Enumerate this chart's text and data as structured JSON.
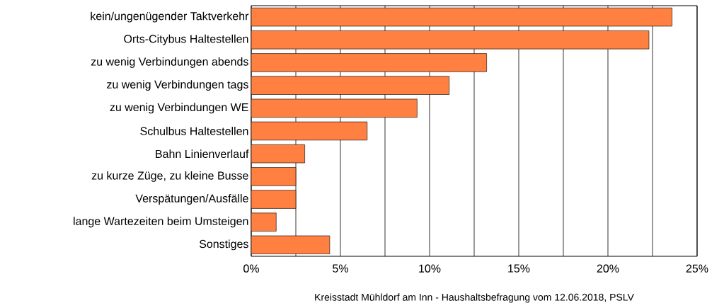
{
  "chart_data": {
    "type": "bar",
    "orientation": "horizontal",
    "categories": [
      "kein/ungenügender Taktverkehr",
      "Orts-Citybus Haltestellen",
      "zu wenig Verbindungen abends",
      "zu wenig Verbindungen tags",
      "zu wenig Verbindungen WE",
      "Schulbus Haltestellen",
      "Bahn Linienverlauf",
      "zu kurze Züge, zu kleine Busse",
      "Verspätungen/Ausfälle",
      "lange Wartezeiten beim Umsteigen",
      "Sonstiges"
    ],
    "values": [
      23.6,
      22.3,
      13.2,
      11.1,
      9.3,
      6.5,
      3.0,
      2.5,
      2.5,
      1.4,
      4.4
    ],
    "color": "#ff8040",
    "xlim": [
      0,
      25
    ],
    "xticks": [
      {
        "value": 0,
        "label": "0%"
      },
      {
        "value": 2.5,
        "label": null
      },
      {
        "value": 5,
        "label": "5%"
      },
      {
        "value": 7.5,
        "label": null
      },
      {
        "value": 10,
        "label": "10%"
      },
      {
        "value": 12.5,
        "label": null
      },
      {
        "value": 15,
        "label": "15%"
      },
      {
        "value": 17.5,
        "label": null
      },
      {
        "value": 20,
        "label": "20%"
      },
      {
        "value": 22.5,
        "label": null
      },
      {
        "value": 25,
        "label": "25%"
      }
    ],
    "grid": "x",
    "annotations": [
      "Kreisstadt Mühldorf am Inn - Haushaltsbefragung vom 12.06.2018, PSLV"
    ]
  }
}
